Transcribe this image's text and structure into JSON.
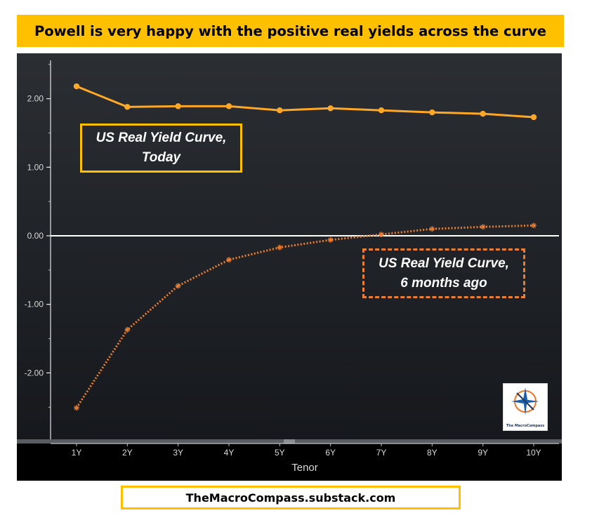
{
  "title": "Powell is very happy with the positive real yields across the curve",
  "footer_text": "TheMacroCompass.substack.com",
  "logo": {
    "brand": "The MacroCompass",
    "icon": "compass-star-icon"
  },
  "colors": {
    "today": "#ffa726",
    "six_months_ago": "#ed7d31",
    "banner": "#ffc000",
    "zero_line": "#ffffff"
  },
  "chart_data": {
    "type": "line",
    "title": "Powell is very happy with the positive real yields across the curve",
    "xlabel": "Tenor",
    "ylabel": "",
    "categories": [
      "1Y",
      "2Y",
      "3Y",
      "4Y",
      "5Y",
      "6Y",
      "7Y",
      "8Y",
      "9Y",
      "10Y"
    ],
    "ylim": [
      -2.9,
      2.6
    ],
    "yticks": [
      2.0,
      1.0,
      0.0,
      -1.0,
      -2.0
    ],
    "ytick_labels": [
      "2.00",
      "1.00",
      "0.00",
      "-1.00",
      "-2.00"
    ],
    "series": [
      {
        "name": "US Real Yield Curve, Today",
        "style": "solid",
        "values": [
          2.18,
          1.88,
          1.89,
          1.89,
          1.83,
          1.86,
          1.83,
          1.8,
          1.78,
          1.73
        ]
      },
      {
        "name": "US Real Yield Curve, 6 months ago",
        "style": "dotted",
        "values": [
          -2.51,
          -1.37,
          -0.73,
          -0.35,
          -0.17,
          -0.06,
          0.02,
          0.1,
          0.13,
          0.15
        ]
      }
    ],
    "annotations": [
      {
        "text_line1": "US Real Yield Curve,",
        "text_line2": "Today"
      },
      {
        "text_line1": "US Real Yield Curve,",
        "text_line2": "6 months ago"
      }
    ]
  }
}
